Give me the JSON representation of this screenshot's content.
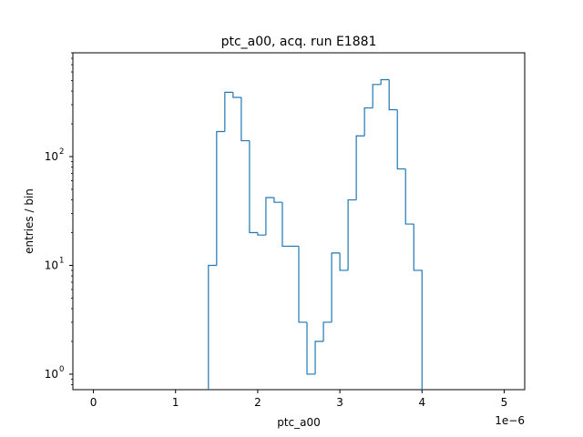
{
  "chart_data": {
    "type": "histogram",
    "title": "ptc_a00, acq. run E1881",
    "xlabel": "ptc_a00",
    "ylabel": "entries / bin",
    "x_offset_label": "1e−6",
    "xlim": [
      -0.25,
      5.25
    ],
    "x_ticks": [
      0,
      1,
      2,
      3,
      4,
      5
    ],
    "y_scale": "log",
    "ylim": [
      0.72,
      900
    ],
    "y_major_ticks": [
      {
        "value": 1,
        "base": "10",
        "exp": "0"
      },
      {
        "value": 10,
        "base": "10",
        "exp": "1"
      },
      {
        "value": 100,
        "base": "10",
        "exp": "2"
      }
    ],
    "grid": false,
    "line_color": "#1f77b4",
    "bin_width": 0.1,
    "bins": [
      {
        "x0": 1.4,
        "value": 10
      },
      {
        "x0": 1.5,
        "value": 170
      },
      {
        "x0": 1.6,
        "value": 390
      },
      {
        "x0": 1.7,
        "value": 350
      },
      {
        "x0": 1.8,
        "value": 140
      },
      {
        "x0": 1.9,
        "value": 20
      },
      {
        "x0": 2.0,
        "value": 19
      },
      {
        "x0": 2.1,
        "value": 42
      },
      {
        "x0": 2.2,
        "value": 38
      },
      {
        "x0": 2.3,
        "value": 15
      },
      {
        "x0": 2.4,
        "value": 15
      },
      {
        "x0": 2.5,
        "value": 3
      },
      {
        "x0": 2.6,
        "value": 1
      },
      {
        "x0": 2.7,
        "value": 2
      },
      {
        "x0": 2.8,
        "value": 3
      },
      {
        "x0": 2.9,
        "value": 13
      },
      {
        "x0": 3.0,
        "value": 9
      },
      {
        "x0": 3.1,
        "value": 40
      },
      {
        "x0": 3.2,
        "value": 155
      },
      {
        "x0": 3.3,
        "value": 280
      },
      {
        "x0": 3.4,
        "value": 460
      },
      {
        "x0": 3.5,
        "value": 510
      },
      {
        "x0": 3.6,
        "value": 270
      },
      {
        "x0": 3.7,
        "value": 77
      },
      {
        "x0": 3.8,
        "value": 24
      },
      {
        "x0": 3.9,
        "value": 9
      }
    ]
  }
}
